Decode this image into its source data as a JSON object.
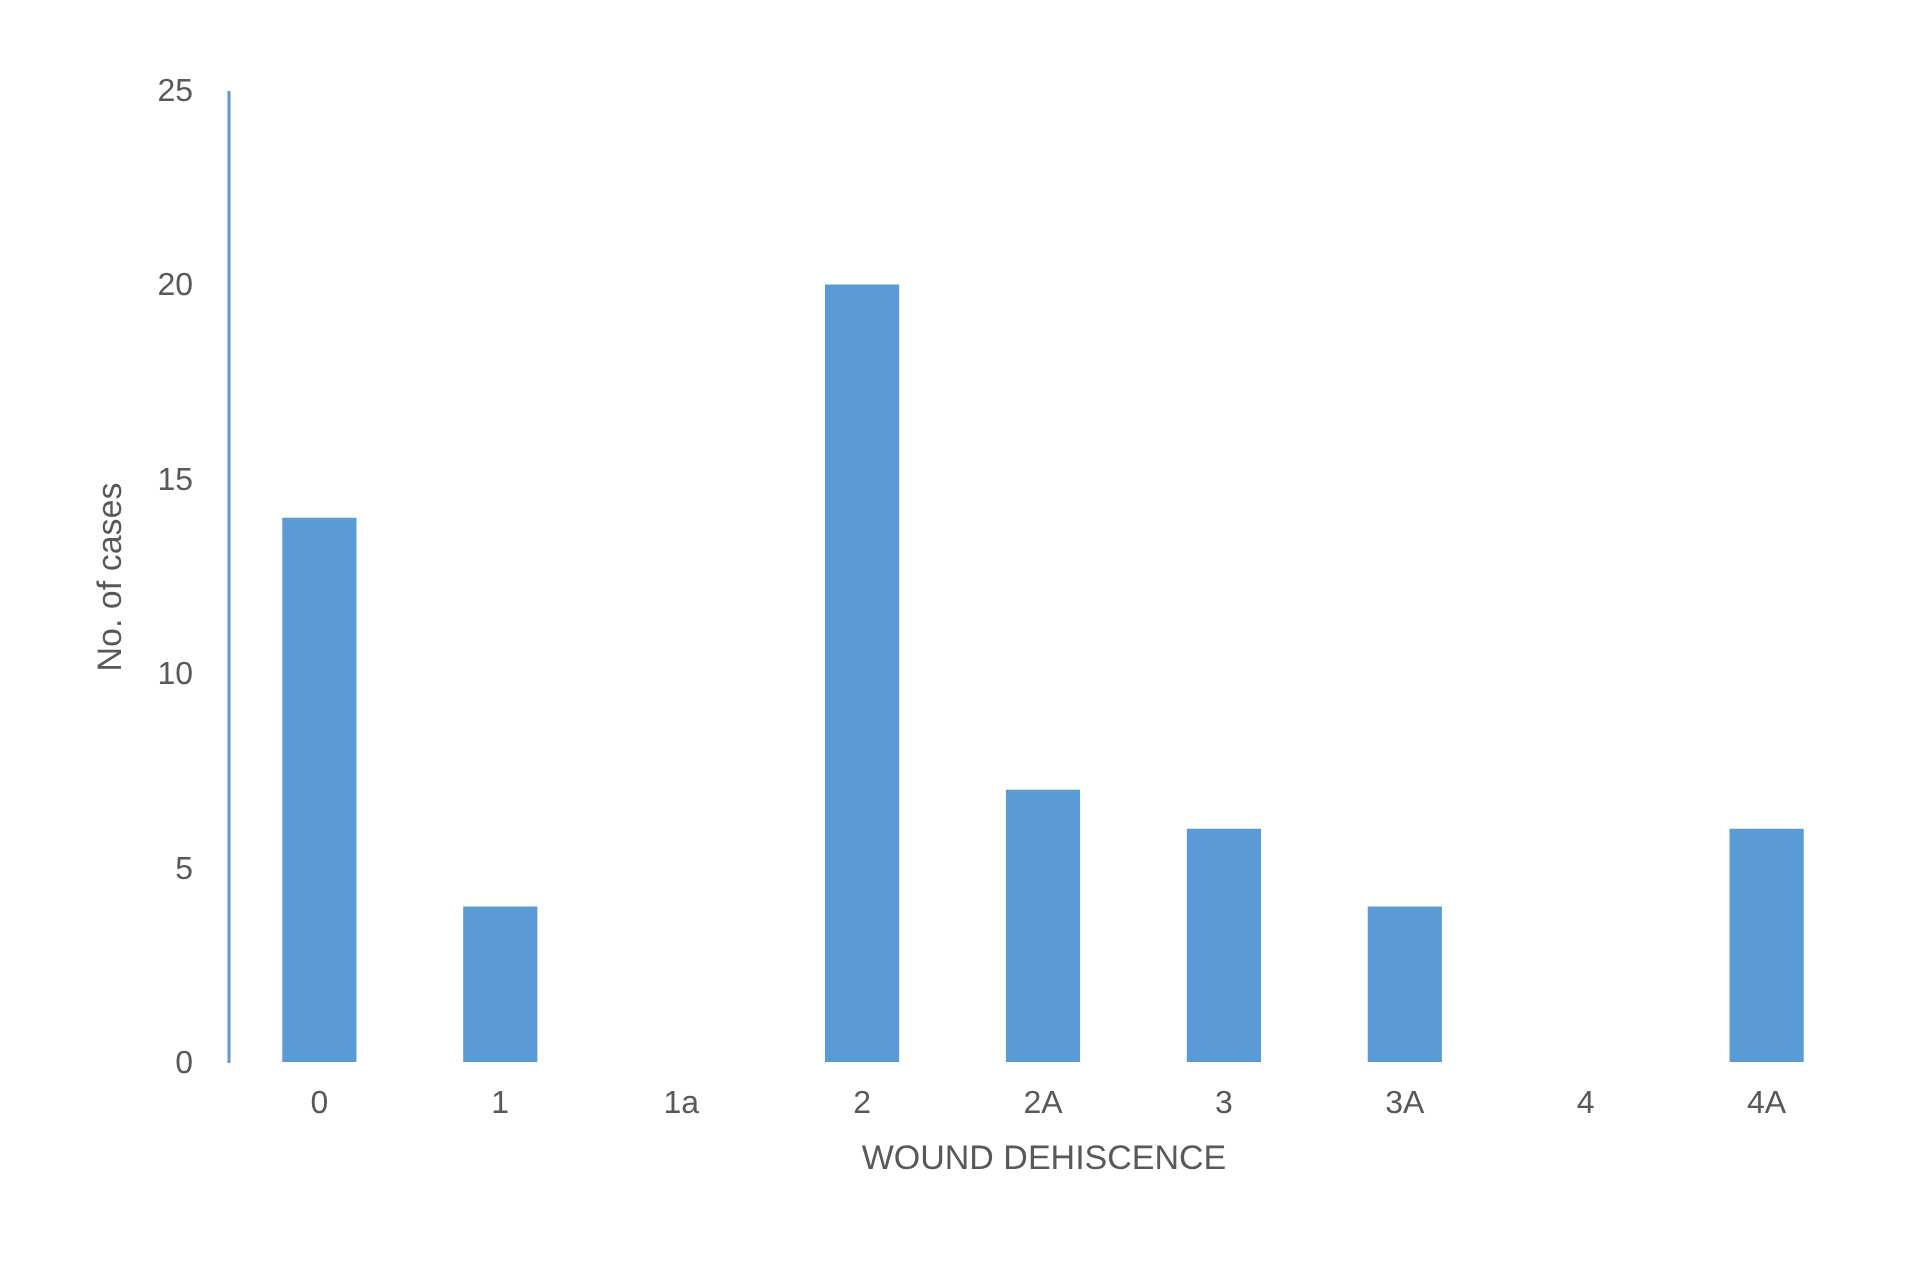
{
  "chart_data": {
    "type": "bar",
    "xlabel": "WOUND DEHISCENCE",
    "ylabel": "No. of cases",
    "categories": [
      "0",
      "1",
      "1a",
      "2",
      "2A",
      "3",
      "3A",
      "4",
      "4A"
    ],
    "values": [
      14,
      4,
      0,
      20,
      7,
      6,
      4,
      0,
      6
    ],
    "color": "#5b9bd5",
    "ylim": [
      0,
      25
    ],
    "yticks": [
      0,
      5,
      10,
      15,
      20,
      25
    ],
    "grid": false
  }
}
